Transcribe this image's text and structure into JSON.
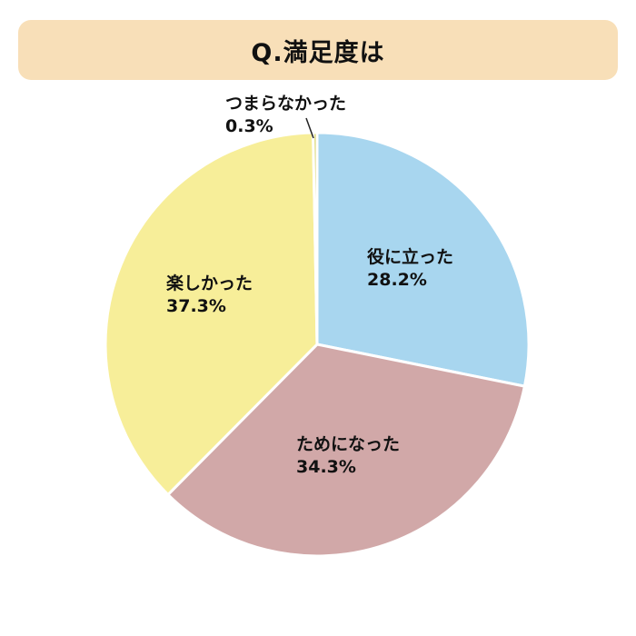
{
  "chart_data": {
    "type": "pie",
    "title": "Q.満足度は",
    "slices": [
      {
        "label": "役に立った",
        "value": 28.2,
        "display": "28.2%",
        "color": "#a8d6ef"
      },
      {
        "label": "ためになった",
        "value": 34.3,
        "display": "34.3%",
        "color": "#d1a8a8"
      },
      {
        "label": "楽しかった",
        "value": 37.3,
        "display": "37.3%",
        "color": "#f7ee99"
      },
      {
        "label": "つまらなかった",
        "value": 0.3,
        "display": "0.3%",
        "color": "#d8d46a"
      }
    ]
  }
}
